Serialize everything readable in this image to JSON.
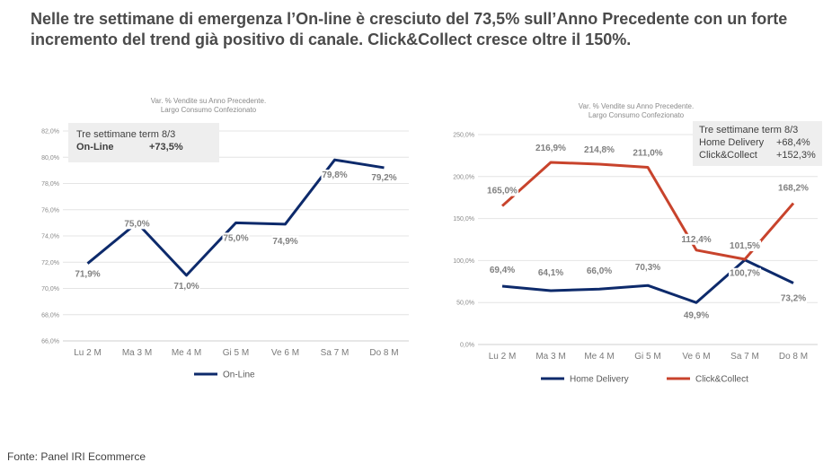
{
  "headline": {
    "line1": "Nelle tre settimane di emergenza l’On-line è cresciuto del 73,5% sull’Anno Precedente con un forte",
    "line2": "incremento del trend già positivo di canale. Click&Collect cresce oltre il 150%."
  },
  "source": "Fonte: Panel IRI Ecommerce",
  "colors": {
    "online": "#0d2a6b",
    "home_delivery": "#0d2a6b",
    "click_collect": "#c8432c",
    "box": "#eeeeee"
  },
  "chart_data": [
    {
      "type": "line",
      "title": "Var. % Vendite su Anno Precedente.",
      "subtitle": "Largo Consumo Confezionato",
      "categories": [
        "Lu 2 M",
        "Ma 3 M",
        "Me 4 M",
        "Gi 5 M",
        "Ve 6 M",
        "Sa 7 M",
        "Do 8 M"
      ],
      "ylim": [
        66,
        82
      ],
      "yticks": [
        "66,0%",
        "68,0%",
        "70,0%",
        "72,0%",
        "74,0%",
        "76,0%",
        "78,0%",
        "80,0%",
        "82,0%"
      ],
      "grid": true,
      "legend_placement": "bottom",
      "series": [
        {
          "name": "On-Line",
          "values": [
            71.9,
            75.0,
            71.0,
            75.0,
            74.9,
            79.8,
            79.2
          ],
          "labels": [
            "71,9%",
            "75,0%",
            "71,0%",
            "75,0%",
            "74,9%",
            "79,8%",
            "79,2%"
          ]
        }
      ],
      "summary_box": {
        "title": "Tre settimane term 8/3",
        "rows": [
          {
            "label": "On-Line",
            "value": "+73,5%"
          }
        ]
      }
    },
    {
      "type": "line",
      "title": "Var. % Vendite su Anno Precedente.",
      "subtitle": "Largo Consumo Confezionato",
      "categories": [
        "Lu 2 M",
        "Ma 3 M",
        "Me 4 M",
        "Gi 5 M",
        "Ve 6 M",
        "Sa 7 M",
        "Do 8 M"
      ],
      "ylim": [
        0,
        250
      ],
      "yticks": [
        "0,0%",
        "50,0%",
        "100,0%",
        "150,0%",
        "200,0%",
        "250,0%"
      ],
      "grid": true,
      "legend_placement": "bottom",
      "series": [
        {
          "name": "Home Delivery",
          "values": [
            69.4,
            64.1,
            66.0,
            70.3,
            49.9,
            100.7,
            73.2
          ],
          "labels": [
            "69,4%",
            "64,1%",
            "66,0%",
            "70,3%",
            "49,9%",
            "100,7%",
            "73,2%"
          ]
        },
        {
          "name": "Click&Collect",
          "values": [
            165.0,
            216.9,
            214.8,
            211.0,
            112.4,
            101.5,
            168.2
          ],
          "labels": [
            "165,0%",
            "216,9%",
            "214,8%",
            "211,0%",
            "112,4%",
            "101,5%",
            "168,2%"
          ]
        }
      ],
      "summary_box": {
        "title": "Tre settimane term 8/3",
        "rows": [
          {
            "label": "Home Delivery",
            "value": "+68,4%"
          },
          {
            "label": "Click&Collect",
            "value": "+152,3%"
          }
        ]
      }
    }
  ]
}
